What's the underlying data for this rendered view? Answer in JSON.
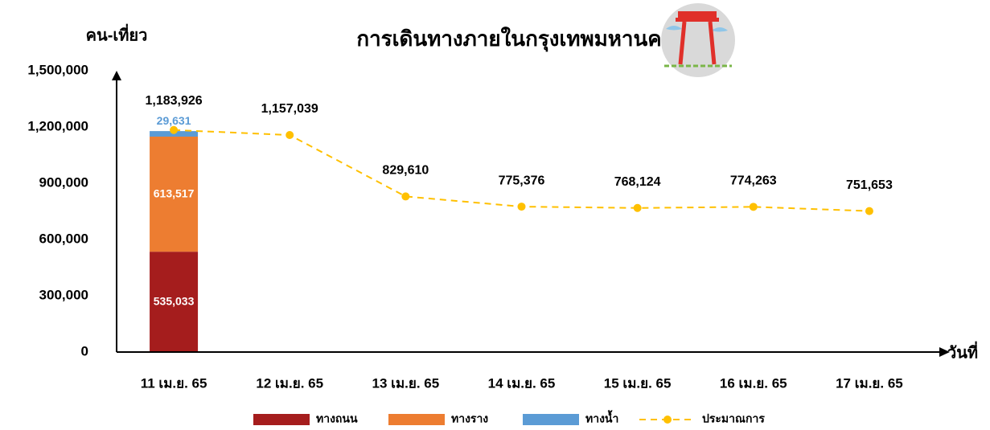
{
  "chart_data": {
    "type": "bar",
    "title": "การเดินทางภายในกรุงเทพมหานคร",
    "y_label": "คน-เที่ยว",
    "x_label": "วันที่",
    "categories": [
      "11 เม.ย. 65",
      "12 เม.ย. 65",
      "13 เม.ย. 65",
      "14 เม.ย. 65",
      "15 เม.ย. 65",
      "16 เม.ย. 65",
      "17 เม.ย. 65"
    ],
    "stacked": true,
    "series": [
      {
        "name": "ทางถนน",
        "type": "bar",
        "color": "#a51d1d",
        "values": [
          535033,
          null,
          null,
          null,
          null,
          null,
          null
        ],
        "value_labels": [
          "535,033",
          null,
          null,
          null,
          null,
          null,
          null
        ]
      },
      {
        "name": "ทางราง",
        "type": "bar",
        "color": "#ed7d31",
        "values": [
          613517,
          null,
          null,
          null,
          null,
          null,
          null
        ],
        "value_labels": [
          "613,517",
          null,
          null,
          null,
          null,
          null,
          null
        ]
      },
      {
        "name": "ทางน้ำ",
        "type": "bar",
        "color": "#5b9bd5",
        "values": [
          29631,
          null,
          null,
          null,
          null,
          null,
          null
        ],
        "value_labels": [
          "29,631",
          null,
          null,
          null,
          null,
          null,
          null
        ]
      },
      {
        "name": "ประมาณการ",
        "type": "line",
        "color": "#ffc000",
        "dashed": true,
        "values": [
          1183926,
          1157039,
          829610,
          775376,
          768124,
          774263,
          751653
        ],
        "value_labels": [
          "1,183,926",
          "1,157,039",
          "829,610",
          "775,376",
          "768,124",
          "774,263",
          "751,653"
        ]
      }
    ],
    "ylim": [
      0,
      1500000
    ],
    "yticks": [
      0,
      {
        "value": 300000,
        "label": "300,000"
      },
      {
        "value": 600000,
        "label": "600,000"
      },
      {
        "value": 900000,
        "label": "900,000"
      },
      {
        "value": 1200000,
        "label": "1,200,000"
      },
      {
        "value": 1500000,
        "label": "1,500,000"
      }
    ],
    "grid": false,
    "legend": "bottom"
  }
}
